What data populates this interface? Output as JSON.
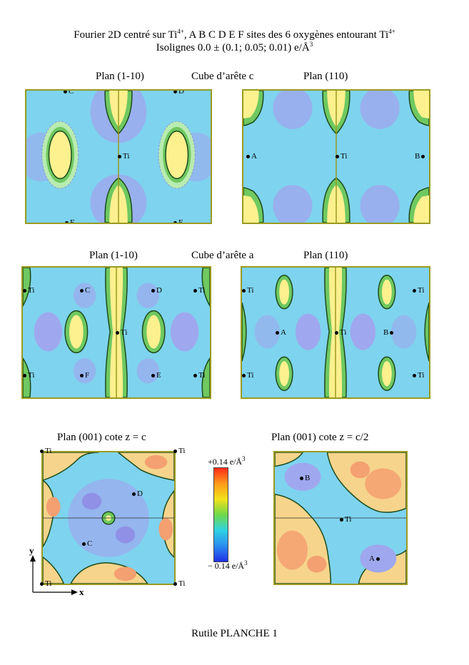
{
  "header": {
    "line1_pre": "Fourier 2D centré sur Ti",
    "line1_sup1": "4+",
    "line1_mid": ", A B C D E F sites des 6 oxygènes entourant Ti",
    "line1_sup2": "4+",
    "line2_pre": "Isolignes 0.0 ± (0.1; 0.05; 0.01) e/Å",
    "line2_sup": "3"
  },
  "row1": {
    "left_title": "Plan (1-10)",
    "center_title": "Cube d’arête c",
    "right_title": "Plan (110)"
  },
  "row2": {
    "left_title": "Plan (1-10)",
    "center_title": "Cube d’arête a",
    "right_title": "Plan (110)"
  },
  "row3": {
    "left_title": "Plan (001) cote z = c",
    "right_title": "Plan (001) cote z = c/2"
  },
  "sites": {
    "A": "A",
    "B": "B",
    "C": "C",
    "D": "D",
    "E": "E",
    "F": "F",
    "Ti": "Ti"
  },
  "colorbar": {
    "max_label": "+0.14 e/Å",
    "min_label": "− 0.14 e/Å",
    "unit_sup": "3",
    "colors": [
      "#ff2a1a",
      "#ff9a1a",
      "#f2e21a",
      "#6fd84a",
      "#2fd2e2",
      "#2a8cf0",
      "#2030e8"
    ]
  },
  "axes": {
    "x": "x",
    "y": "y"
  },
  "footer": "Rutile  PLANCHE 1",
  "palette": {
    "background": "#7ed3ee",
    "negative": "#9fa8ee",
    "positive": "#fdf08e",
    "mid": "#f6d48c",
    "peak": "#f4a070",
    "contour_zero": "#1a4a1a",
    "contour_pos": "#6fc860",
    "contour_neg": "#8f98d8",
    "frame": "#9a9a20"
  }
}
